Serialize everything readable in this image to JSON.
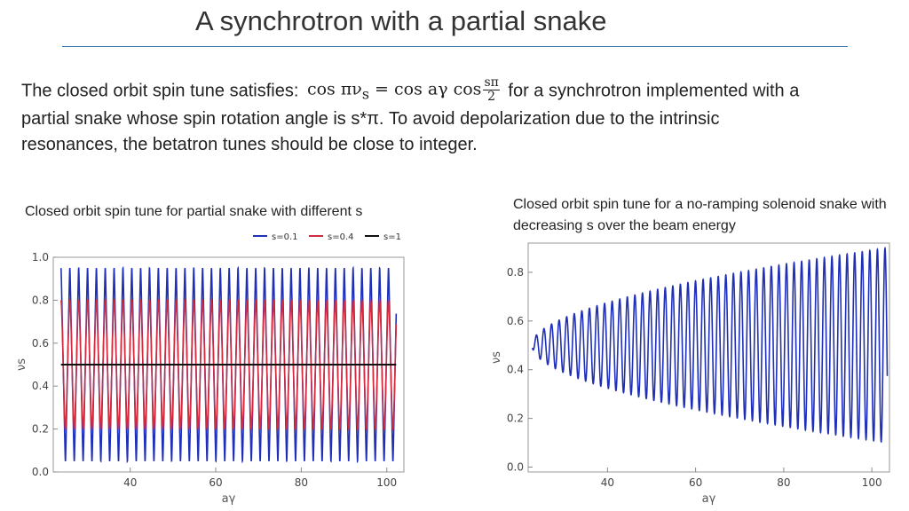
{
  "slide": {
    "title": "A synchrotron with a partial snake",
    "paragraph": {
      "pre_formula": "The closed orbit spin tune satisfies:",
      "formula_lhs": "cos πν",
      "formula_sub": "s",
      "formula_mid": " = cos aγ cos",
      "frac_num": "sπ",
      "frac_den": "2",
      "post_formula": "for a synchrotron",
      "rest": "implemented with a partial snake whose spin rotation angle is s*π. To avoid depolarization due to the intrinsic resonances, the betatron tunes should be close to integer."
    },
    "caption_left": "Closed orbit spin tune for partial snake with different s",
    "caption_right": "Closed orbit spin tune for a no-ramping solenoid snake with decreasing s over the beam energy"
  },
  "chart_data": [
    {
      "type": "line",
      "xlabel": "aγ",
      "ylabel": "νs",
      "xlim": [
        22,
        104
      ],
      "ylim": [
        0,
        1.0
      ],
      "xticks": [
        40,
        60,
        80,
        100
      ],
      "yticks": [
        0.0,
        0.2,
        0.4,
        0.6,
        0.8,
        1.0
      ],
      "ytick_labels": [
        "0.0",
        "0.2",
        "0.4",
        "0.6",
        "0.8",
        "1.0"
      ],
      "legend_position": "top-right",
      "series": [
        {
          "name": "s=0.1",
          "color": "#1f2fb8",
          "formula": "acos(cos(aγ)·cos(0.1π/2))/π",
          "min": 0.05,
          "max": 0.95
        },
        {
          "name": "s=0.4",
          "color": "#d22a3f",
          "formula": "acos(cos(aγ)·cos(0.4π/2))/π",
          "min": 0.2,
          "max": 0.8
        },
        {
          "name": "s=1",
          "color": "#111111",
          "formula": "0.5",
          "value": 0.5
        }
      ]
    },
    {
      "type": "line",
      "xlabel": "aγ",
      "ylabel": "νs",
      "xlim": [
        22,
        104
      ],
      "ylim": [
        -0.02,
        0.92
      ],
      "xticks": [
        40,
        60,
        80,
        100
      ],
      "yticks": [
        0.0,
        0.2,
        0.4,
        0.6,
        0.8
      ],
      "ytick_labels": [
        "0.0",
        "0.2",
        "0.4",
        "0.6",
        "0.8"
      ],
      "series": [
        {
          "color": "#1f2fb8",
          "description": "oscillation about 0.5 with amplitude growing from ~0.0 at aγ≈22 to ~0.39 at aγ≈103",
          "start_value": 0.49,
          "end_min": 0.11,
          "end_max": 0.89
        }
      ]
    }
  ]
}
